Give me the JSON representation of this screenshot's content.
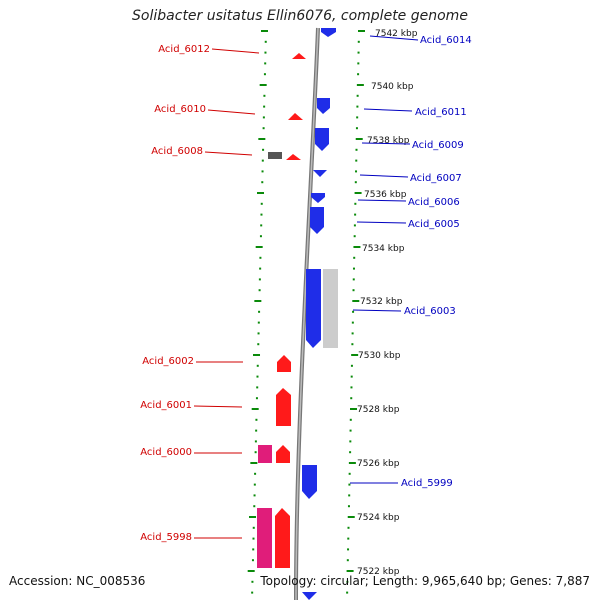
{
  "title": "Solibacter usitatus Ellin6076, complete genome",
  "footer": {
    "accession": "Accession: NC_008536",
    "summary": "Topology: circular; Length: 9,965,640 bp; Genes: 7,887"
  },
  "colors": {
    "left_gene": "#ff1a1a",
    "left_gene_pink": "#e01d7a",
    "right_gene": "#1f2de8",
    "grey_gene": "#cccccc",
    "dark_gene": "#666666",
    "tick": "#0a8a0a",
    "left_label": "#d00000",
    "right_label": "#0000c0",
    "backbone": "#888888"
  },
  "kbp_labels": [
    {
      "text": "7542 kbp"
    },
    {
      "text": "7540 kbp"
    },
    {
      "text": "7538 kbp"
    },
    {
      "text": "7536 kbp"
    },
    {
      "text": "7534 kbp"
    },
    {
      "text": "7532 kbp"
    },
    {
      "text": "7530 kbp"
    },
    {
      "text": "7528 kbp"
    },
    {
      "text": "7526 kbp"
    },
    {
      "text": "7524 kbp"
    },
    {
      "text": "7522 kbp"
    }
  ],
  "left_genes": [
    {
      "label": "Acid_6012"
    },
    {
      "label": "Acid_6010"
    },
    {
      "label": "Acid_6008"
    },
    {
      "label": "Acid_6002"
    },
    {
      "label": "Acid_6001"
    },
    {
      "label": "Acid_6000"
    },
    {
      "label": "Acid_5998"
    }
  ],
  "right_genes": [
    {
      "label": "Acid_6014"
    },
    {
      "label": "Acid_6011"
    },
    {
      "label": "Acid_6009"
    },
    {
      "label": "Acid_6007"
    },
    {
      "label": "Acid_6006"
    },
    {
      "label": "Acid_6005"
    },
    {
      "label": "Acid_6003"
    },
    {
      "label": "Acid_5999"
    }
  ]
}
